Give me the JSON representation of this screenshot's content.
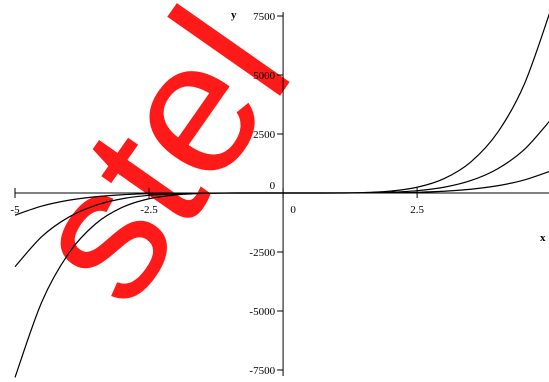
{
  "watermark": "stel",
  "chart_data": {
    "type": "line",
    "x_label": "x",
    "y_label": "y",
    "x": [
      -5,
      -4.5,
      -4,
      -3.5,
      -3,
      -2.5,
      -2,
      -1.5,
      -1,
      -0.5,
      0,
      0.5,
      1,
      1.5,
      2,
      2.5,
      3,
      3.5,
      4,
      4.5,
      5
    ],
    "series": [
      {
        "color": "#000000",
        "values": [
          -7813,
          -4613,
          -2560,
          -1313,
          -608,
          -244,
          -80,
          -19,
          -2,
          0,
          0,
          0,
          2,
          19,
          80,
          244,
          608,
          1313,
          2560,
          4613,
          7813
        ]
      },
      {
        "color": "#000000",
        "values": [
          -3125,
          -1845,
          -1024,
          -525,
          -243,
          -98,
          -32,
          -8,
          -1,
          0,
          0,
          0,
          1,
          8,
          32,
          98,
          243,
          525,
          1024,
          1845,
          3125
        ]
      },
      {
        "color": "#000000",
        "values": [
          -938,
          -554,
          -307,
          -158,
          -73,
          -29,
          -10,
          -2,
          0,
          0,
          0,
          0,
          0,
          2,
          10,
          29,
          73,
          158,
          307,
          554,
          938
        ]
      }
    ],
    "xlim": [
      -5.28,
      4.96
    ],
    "ylim": [
      -8008,
      8178
    ],
    "xticks": [
      -5,
      -2.5,
      0,
      2.5
    ],
    "yticks": [
      -7500,
      -5000,
      -2500,
      0,
      2500,
      5000,
      7500
    ]
  }
}
